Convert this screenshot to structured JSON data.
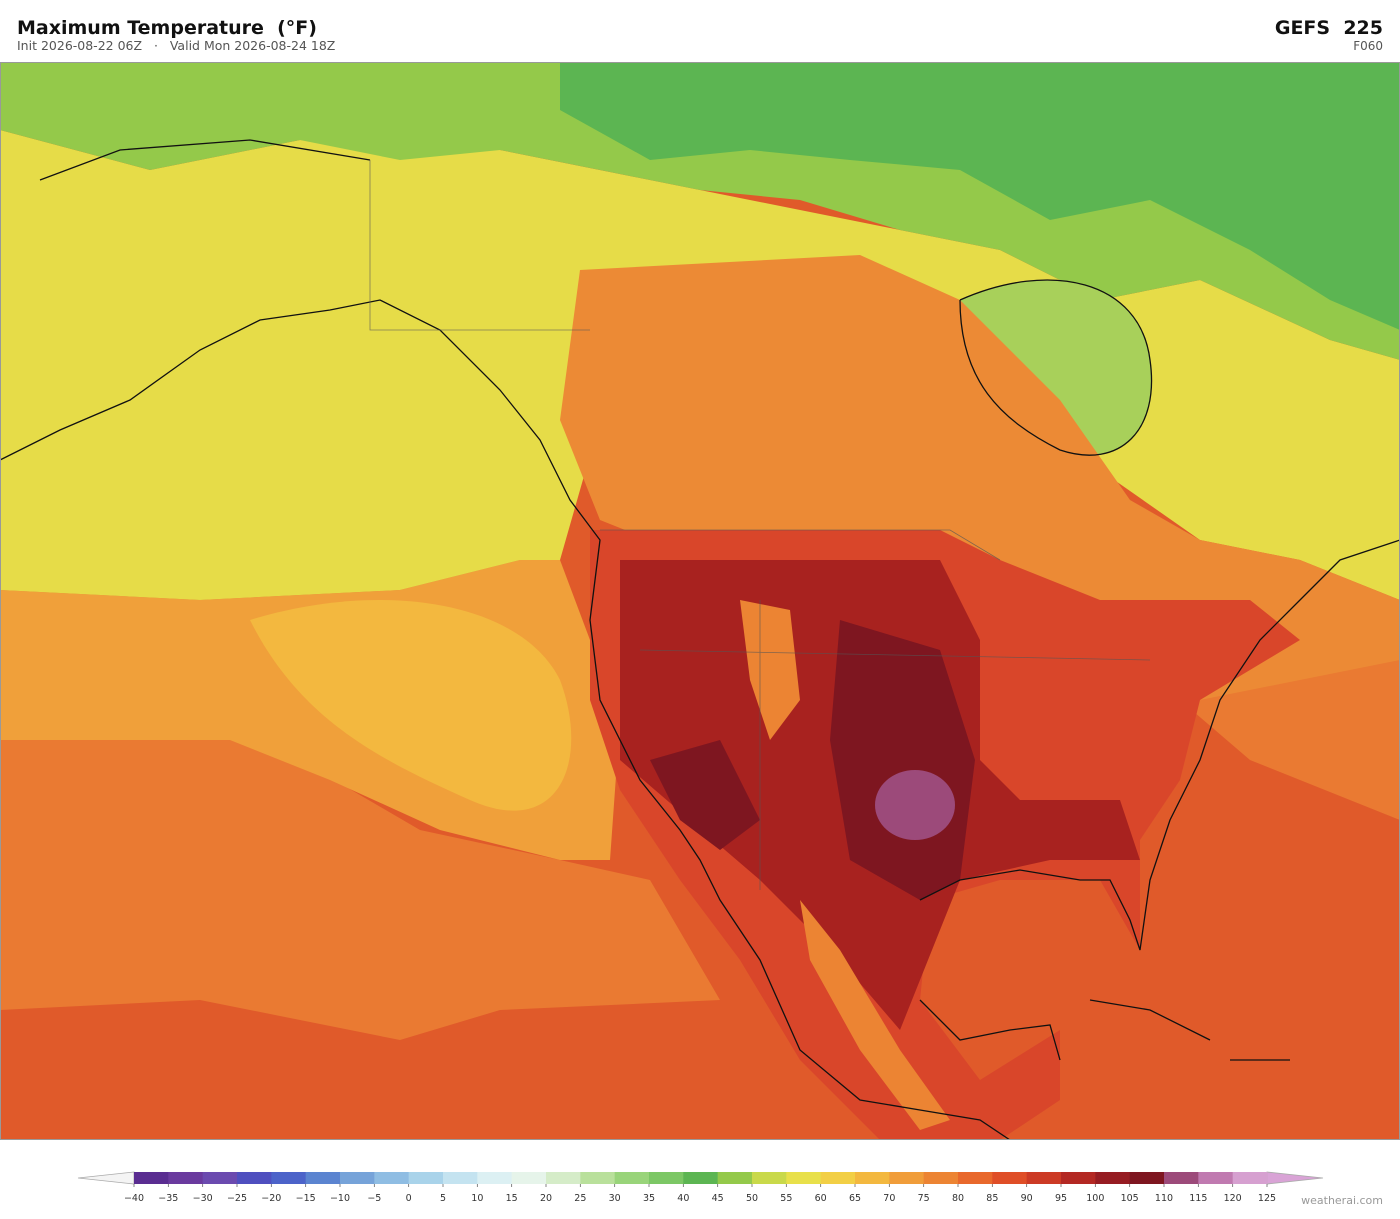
{
  "header": {
    "title": "Maximum Temperature  (°F)",
    "subtitle": "Init 2026-08-22 06Z   ·   Valid Mon 2026-08-24 18Z",
    "model": "GEFS  225",
    "forecast_hour": "F060"
  },
  "colorbar": {
    "ticks": [
      {
        "value": -40,
        "label": "−40"
      },
      {
        "value": -35,
        "label": "−35"
      },
      {
        "value": -30,
        "label": "−30"
      },
      {
        "value": -25,
        "label": "−25"
      },
      {
        "value": -20,
        "label": "−20"
      },
      {
        "value": -15,
        "label": "−15"
      },
      {
        "value": -10,
        "label": "−10"
      },
      {
        "value": -5,
        "label": "−5"
      },
      0,
      5,
      10,
      15,
      20,
      25,
      30,
      35,
      40,
      45,
      50,
      55,
      60,
      65,
      70,
      75,
      80,
      85,
      90,
      95,
      100,
      105,
      110,
      115,
      120,
      125
    ],
    "colors": [
      "#5a2d91",
      "#6a3a9e",
      "#6b4aaf",
      "#4f4fbf",
      "#4c63c9",
      "#5b84d0",
      "#76a3d9",
      "#8fbde3",
      "#a9d3ea",
      "#c4e3f0",
      "#dcf0f3",
      "#e6f4ea",
      "#d5ecc8",
      "#b9e09b",
      "#99d47a",
      "#7cc765",
      "#5cb552",
      "#94c94a",
      "#c9d94a",
      "#e8e04a",
      "#f2cf45",
      "#f3b83f",
      "#f09d3a",
      "#ec8433",
      "#e8682c",
      "#df4e27",
      "#cc3a25",
      "#b32823",
      "#961c22",
      "#7e1620",
      "#9c4a7a",
      "#c07ab0",
      "#d6a0d0"
    ],
    "under_color": "#f4f4f4",
    "over_color": "#d9a3d6"
  },
  "watermark": "weatherai.com"
}
